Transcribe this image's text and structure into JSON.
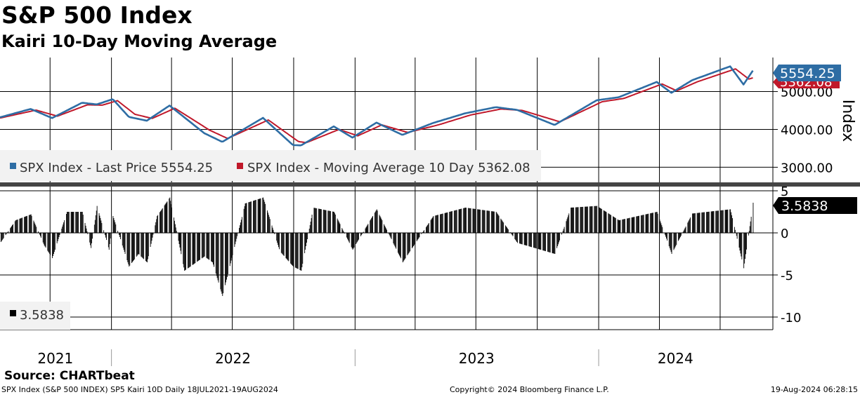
{
  "title": "S&P 500 Index",
  "subtitle": "Kairi 10-Day Moving Average",
  "source": "Source: CHARTbeat",
  "footer": {
    "left": "SPX Index (S&P 500 INDEX) SP5 Kairi 10D  Daily 18JUL2021-19AUG2024",
    "middle": "Copyright© 2024 Bloomberg Finance L.P.",
    "right": "19-Aug-2024 06:28:15"
  },
  "colors": {
    "price": "#2e6da4",
    "moving_average": "#c0182a",
    "kairi": "#000000",
    "legend_bg": "#f2f2f2"
  },
  "chart_data": [
    {
      "type": "line",
      "panel": "top",
      "ylabel": "Index",
      "ylim": [
        2600,
        5900
      ],
      "yticks": [
        "5000.00",
        "4000.00",
        "3000.00"
      ],
      "ytick_values": [
        5000,
        4000,
        3000
      ],
      "x_range": [
        "2021-07-18",
        "2024-08-19"
      ],
      "legend": {
        "placement": "bottom-left",
        "entries": [
          "SPX Index - Last Price 5554.25",
          "SPX Index - Moving Average 10 Day 5362.08"
        ]
      },
      "last_value_tags": {
        "price": "5554.25",
        "moving_average": "5362.08"
      },
      "series": [
        {
          "name": "SPX Index - Last Price",
          "color": "#2e6da4",
          "x": [
            "2021-07-18",
            "2021-09-02",
            "2021-10-04",
            "2021-11-18",
            "2021-12-10",
            "2022-01-03",
            "2022-01-27",
            "2022-02-23",
            "2022-03-29",
            "2022-05-20",
            "2022-06-16",
            "2022-08-16",
            "2022-09-30",
            "2022-10-12",
            "2022-11-30",
            "2022-12-28",
            "2023-02-02",
            "2023-03-13",
            "2023-04-28",
            "2023-06-15",
            "2023-07-31",
            "2023-09-01",
            "2023-10-27",
            "2023-12-29",
            "2024-01-31",
            "2024-03-28",
            "2024-04-19",
            "2024-05-20",
            "2024-07-16",
            "2024-08-05",
            "2024-08-19"
          ],
          "values": [
            4320,
            4540,
            4300,
            4705,
            4660,
            4800,
            4330,
            4230,
            4630,
            3900,
            3670,
            4305,
            3585,
            3577,
            4080,
            3783,
            4180,
            3855,
            4170,
            4425,
            4588,
            4515,
            4117,
            4770,
            4850,
            5254,
            4967,
            5300,
            5667,
            5186,
            5554
          ]
        },
        {
          "name": "SPX Index - Moving Average 10 Day",
          "color": "#c0182a",
          "x": [
            "2021-07-18",
            "2021-09-10",
            "2021-10-12",
            "2021-11-26",
            "2021-12-18",
            "2022-01-10",
            "2022-02-05",
            "2022-03-03",
            "2022-04-06",
            "2022-05-28",
            "2022-06-24",
            "2022-08-24",
            "2022-10-08",
            "2022-10-20",
            "2022-12-08",
            "2023-01-05",
            "2023-02-10",
            "2023-03-21",
            "2023-05-06",
            "2023-06-23",
            "2023-08-08",
            "2023-09-09",
            "2023-11-04",
            "2024-01-06",
            "2024-02-08",
            "2024-04-05",
            "2024-04-27",
            "2024-05-28",
            "2024-07-24",
            "2024-08-13",
            "2024-08-19"
          ],
          "values": [
            4300,
            4510,
            4350,
            4650,
            4640,
            4760,
            4400,
            4290,
            4560,
            3980,
            3760,
            4250,
            3680,
            3650,
            4000,
            3830,
            4120,
            3920,
            4120,
            4380,
            4540,
            4500,
            4200,
            4730,
            4820,
            5200,
            5020,
            5260,
            5600,
            5330,
            5362
          ]
        }
      ]
    },
    {
      "type": "bar",
      "panel": "bottom",
      "ylim": [
        -11.5,
        5.5
      ],
      "yticks": [
        "5",
        "0",
        "-5",
        "-10"
      ],
      "ytick_values": [
        5,
        0,
        -5,
        -10
      ],
      "x_range": [
        "2021-07-18",
        "2024-08-19"
      ],
      "x_tick_labels": [
        "2021",
        "2022",
        "2023",
        "2024"
      ],
      "legend": {
        "placement": "bottom-left",
        "entries": [
          "3.5838"
        ]
      },
      "last_value_tag": "3.5838",
      "series": [
        {
          "name": "Kairi 10D",
          "color": "#000000",
          "x": [
            "2021-07-18",
            "2021-08-10",
            "2021-09-02",
            "2021-09-22",
            "2021-10-04",
            "2021-10-26",
            "2021-11-18",
            "2021-12-01",
            "2021-12-10",
            "2021-12-28",
            "2022-01-03",
            "2022-01-27",
            "2022-02-10",
            "2022-02-23",
            "2022-03-10",
            "2022-03-29",
            "2022-04-20",
            "2022-05-20",
            "2022-06-01",
            "2022-06-16",
            "2022-07-20",
            "2022-08-16",
            "2022-09-10",
            "2022-09-30",
            "2022-10-12",
            "2022-10-30",
            "2022-11-30",
            "2022-12-28",
            "2023-02-02",
            "2023-03-13",
            "2023-04-28",
            "2023-06-15",
            "2023-07-31",
            "2023-09-01",
            "2023-10-27",
            "2023-11-20",
            "2023-12-29",
            "2024-01-31",
            "2024-03-28",
            "2024-04-19",
            "2024-05-20",
            "2024-07-16",
            "2024-08-05",
            "2024-08-19"
          ],
          "values": [
            -1.2,
            1.5,
            2.2,
            -1.5,
            -3.0,
            2.5,
            2.5,
            -1.8,
            3.2,
            -2.0,
            2.0,
            -4.0,
            -2.5,
            -3.5,
            2.0,
            4.2,
            -4.5,
            -2.8,
            -3.5,
            -7.5,
            3.5,
            4.2,
            -2.2,
            -4.0,
            -4.5,
            3.0,
            2.5,
            -2.0,
            2.8,
            -3.5,
            2.0,
            3.0,
            2.5,
            -1.2,
            -2.5,
            3.0,
            3.2,
            1.5,
            2.5,
            -2.5,
            2.3,
            2.8,
            -4.2,
            3.58
          ]
        }
      ]
    }
  ]
}
